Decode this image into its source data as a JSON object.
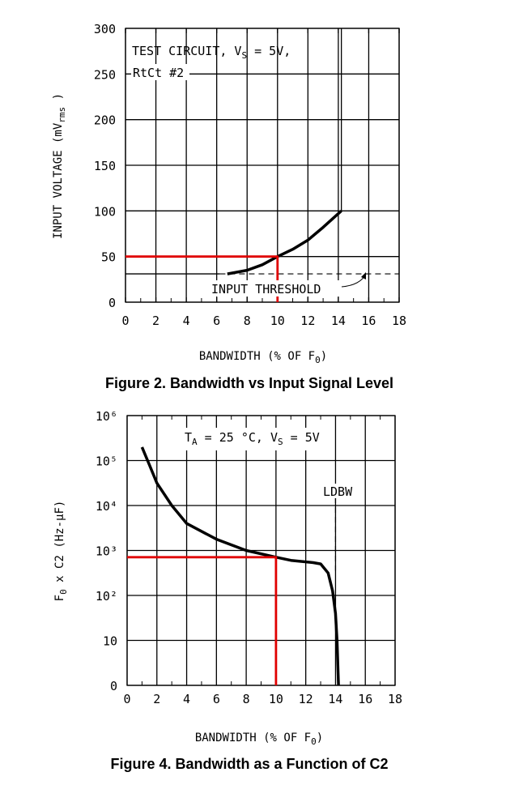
{
  "chart_data": [
    {
      "type": "line",
      "caption": "Figure 2. Bandwidth vs Input Signal Level",
      "xlabel": "BANDWIDTH (% OF F",
      "xlabel_sub": "0",
      "xlabel_end": ")",
      "ylabel": "INPUT VOLTAGE (mV",
      "ylabel_sub": "rms",
      "ylabel_end": " )",
      "xlim": [
        0,
        18
      ],
      "ylim": [
        0,
        300
      ],
      "xticks": [
        "0",
        "2",
        "4",
        "6",
        "8",
        "10",
        "12",
        "14",
        "16",
        "18"
      ],
      "yticks": [
        "0",
        "50",
        "100",
        "150",
        "200",
        "250",
        "300"
      ],
      "grid": true,
      "annotations": {
        "test_circuit": "TEST CIRCUIT, V",
        "test_circuit_sub": "S",
        "test_circuit_end": " = 5V,",
        "rtct": "RtCt #2",
        "threshold": "INPUT THRESHOLD",
        "threshold_value": 31
      },
      "series": [
        {
          "color": "#000000",
          "x": [
            6.7,
            8,
            9,
            10,
            11,
            12,
            13,
            14.2
          ],
          "y": [
            31,
            35,
            41,
            50,
            58,
            68,
            82,
            100
          ]
        },
        {
          "color": "#e00000",
          "x": [
            0,
            10,
            10
          ],
          "y": [
            50,
            50,
            0
          ]
        }
      ],
      "vertical_line_x": 14.2
    },
    {
      "type": "line",
      "caption": "Figure 4. Bandwidth as a Function of C2",
      "xlabel": "BANDWIDTH (% OF F",
      "xlabel_sub": "0",
      "xlabel_end": ")",
      "ylabel": "F",
      "ylabel_sub": "0",
      "ylabel_end": " x C2 (Hz-μF)",
      "xlim": [
        0,
        18
      ],
      "y_scale": "log",
      "yticks": [
        "0",
        "10",
        "10²",
        "10³",
        "10⁴",
        "10⁵",
        "10⁶"
      ],
      "grid": true,
      "annotations": {
        "conditions": "T",
        "conditions_sub": "A",
        "conditions_mid": " = 25 °C, V",
        "conditions_sub2": "S",
        "conditions_end": " = 5V",
        "ldbw": "LDBW",
        "ldbw_x": 14
      },
      "series": [
        {
          "color": "#000000",
          "x": [
            1,
            1.5,
            2,
            3,
            4,
            6,
            8,
            10,
            11,
            12.5,
            13,
            13.5,
            13.8,
            14,
            14.1,
            14.2
          ],
          "y_decade": [
            5.3,
            4.9,
            4.5,
            4.0,
            3.6,
            3.25,
            3.0,
            2.85,
            2.78,
            2.73,
            2.7,
            2.5,
            2.1,
            1.6,
            1.0,
            0
          ]
        },
        {
          "color": "#e00000",
          "x": [
            0,
            10,
            10
          ],
          "y_decade": [
            2.85,
            2.85,
            0
          ]
        }
      ]
    }
  ]
}
